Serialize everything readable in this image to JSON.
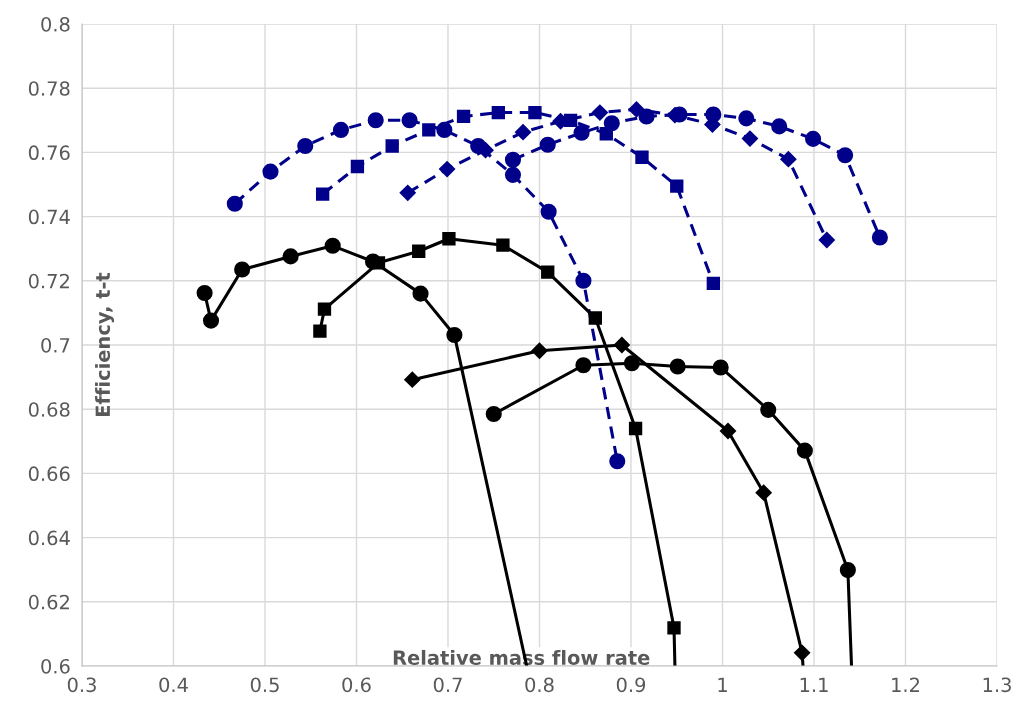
{
  "chart_data": {
    "type": "line",
    "xlabel": "Relative mass flow rate",
    "ylabel": "Efficiency, t-t",
    "xlim": [
      0.3,
      1.3
    ],
    "xticks": [
      0.3,
      0.4,
      0.5,
      0.6,
      0.7,
      0.8,
      0.9,
      1,
      1.1,
      1.2,
      1.3
    ],
    "ylim": [
      0.6,
      0.8
    ],
    "yticks": [
      0.6,
      0.62,
      0.64,
      0.66,
      0.68,
      0.7,
      0.72,
      0.74,
      0.76,
      0.78,
      0.8
    ],
    "grid": true,
    "series": [
      {
        "color": "#00008b",
        "line_style": "dashed",
        "marker": "circle",
        "x": [
          0.467,
          0.506,
          0.544,
          0.583,
          0.621,
          0.658,
          0.696,
          0.733,
          0.771,
          0.81,
          0.848,
          0.885
        ],
        "values": [
          0.744,
          0.754,
          0.762,
          0.767,
          0.77,
          0.77,
          0.767,
          0.762,
          0.753,
          0.7415,
          0.72,
          0.6638
        ]
      },
      {
        "color": "#00008b",
        "line_style": "dashed",
        "marker": "square",
        "x": [
          0.563,
          0.601,
          0.639,
          0.679,
          0.717,
          0.755,
          0.795,
          0.834,
          0.873,
          0.912,
          0.95,
          0.99
        ],
        "values": [
          0.747,
          0.7556,
          0.762,
          0.767,
          0.7712,
          0.7724,
          0.7724,
          0.77,
          0.7658,
          0.7585,
          0.7495,
          0.7192
        ]
      },
      {
        "color": "#00008b",
        "line_style": "dashed",
        "marker": "diamond",
        "x": [
          0.656,
          0.699,
          0.741,
          0.782,
          0.823,
          0.866,
          0.906,
          0.948,
          0.989,
          1.03,
          1.072,
          1.114
        ],
        "values": [
          0.7474,
          0.7548,
          0.7607,
          0.7663,
          0.7697,
          0.7724,
          0.7734,
          0.7716,
          0.7687,
          0.7643,
          0.7579,
          0.7327
        ]
      },
      {
        "color": "#00008b",
        "line_style": "dashed",
        "marker": "circle",
        "x": [
          0.771,
          0.809,
          0.846,
          0.879,
          0.917,
          0.953,
          0.99,
          1.026,
          1.062,
          1.099,
          1.134,
          1.172
        ],
        "values": [
          0.7577,
          0.7624,
          0.7661,
          0.7691,
          0.7712,
          0.7718,
          0.7718,
          0.7706,
          0.7681,
          0.7642,
          0.7591,
          0.7335
        ]
      },
      {
        "color": "#000000",
        "line_style": "solid",
        "marker": "circle",
        "x": [
          0.434,
          0.441,
          0.475,
          0.528,
          0.574,
          0.618,
          0.67,
          0.707
        ],
        "values": [
          0.7162,
          0.7076,
          0.7235,
          0.7276,
          0.7309,
          0.726,
          0.716,
          0.7031
        ]
      },
      {
        "color": "#000000",
        "line_style": "solid",
        "marker": "none",
        "x": [
          0.707,
          0.786
        ],
        "values": [
          0.7031,
          0.6
        ]
      },
      {
        "color": "#000000",
        "line_style": "solid",
        "marker": "square",
        "x": [
          0.56,
          0.565,
          0.624,
          0.668,
          0.701,
          0.76,
          0.809,
          0.861,
          0.905,
          0.947
        ],
        "values": [
          0.7043,
          0.7112,
          0.7256,
          0.7292,
          0.7331,
          0.7311,
          0.7227,
          0.7084,
          0.674,
          0.6119
        ]
      },
      {
        "color": "#000000",
        "line_style": "solid",
        "marker": "none",
        "x": [
          0.947,
          0.948
        ],
        "values": [
          0.6119,
          0.6
        ]
      },
      {
        "color": "#000000",
        "line_style": "solid",
        "marker": "diamond",
        "x": [
          0.661,
          0.8,
          0.89,
          1.006,
          1.045,
          1.087
        ],
        "values": [
          0.6892,
          0.6982,
          0.7,
          0.6732,
          0.654,
          0.6041
        ]
      },
      {
        "color": "#000000",
        "line_style": "solid",
        "marker": "none",
        "x": [
          1.087,
          1.088
        ],
        "values": [
          0.6041,
          0.6
        ]
      },
      {
        "color": "#000000",
        "line_style": "solid",
        "marker": "circle",
        "x": [
          0.75,
          0.848,
          0.901,
          0.951,
          0.998,
          1.05,
          1.09,
          1.137
        ],
        "values": [
          0.6785,
          0.6937,
          0.6943,
          0.6933,
          0.693,
          0.6798,
          0.6671,
          0.6299
        ]
      },
      {
        "color": "#000000",
        "line_style": "solid",
        "marker": "none",
        "x": [
          1.137,
          1.141
        ],
        "values": [
          0.6299,
          0.6
        ]
      }
    ]
  }
}
